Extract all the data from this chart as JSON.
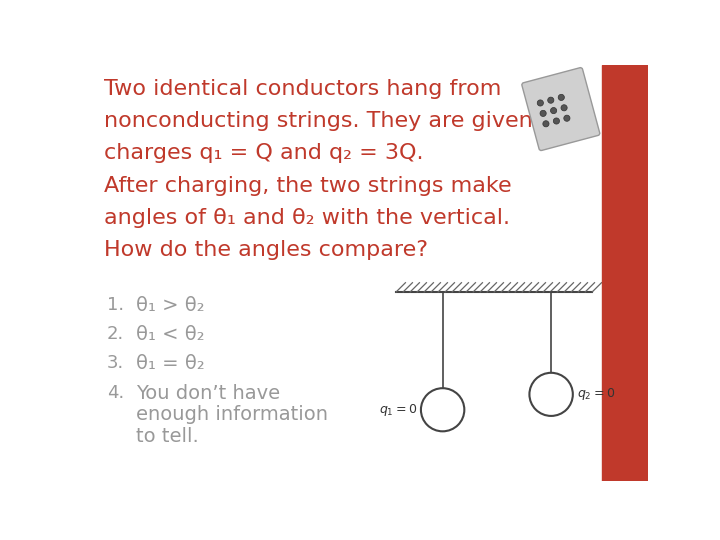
{
  "bg_color": "#ffffff",
  "right_bar_color": "#c0392b",
  "title_lines": [
    "Two identical conductors hang from",
    "nonconducting strings. They are given",
    "charges q₁ = Q and q₂ = 3Q.",
    "After charging, the two strings make",
    "angles of θ₁ and θ₂ with the vertical.",
    "How do the angles compare?"
  ],
  "answer_list": [
    [
      "θ₁ > θ₂",
      "1"
    ],
    [
      "θ₁ < θ₂",
      "2"
    ],
    [
      "θ₁ = θ₂",
      "3"
    ],
    [
      "You don’t have\nenough information\nto tell.",
      "4"
    ]
  ],
  "text_color_red": "#c0392b",
  "text_color_gray": "#999999",
  "text_color_black": "#333333",
  "diagram_hatch_color": "#666666",
  "diagram_line_color": "#444444",
  "diagram_circle_color": "#ffffff",
  "diagram_circle_edge": "#444444",
  "label_q1": "$q_1 = 0$",
  "label_q2": "$q_2 = 0$",
  "title_fontsize": 16,
  "answer_fontsize": 14,
  "num_fontsize": 13
}
